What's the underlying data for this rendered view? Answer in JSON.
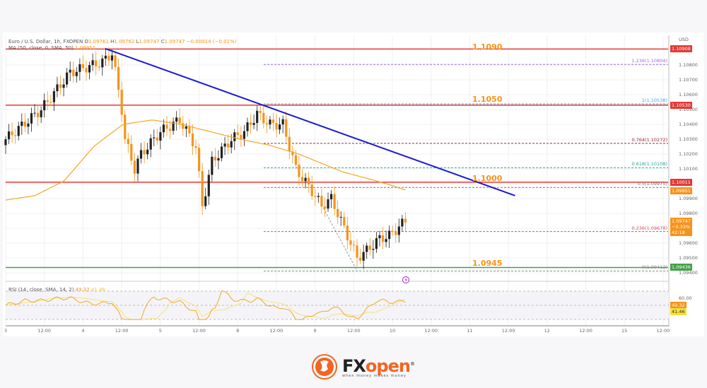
{
  "legend": {
    "symbol": "Euro / U.S. Dollar, 1h, FXOPEN",
    "open_label": "O",
    "open": "1.09761",
    "high_label": "H",
    "high": "1.09762",
    "low_label": "L",
    "low": "1.09747",
    "close_label": "C",
    "close": "1.09747",
    "change": "−0.00014 (−0.01%)",
    "ma": "MA (50, close, 0, SMA, 50)",
    "ma_value": "1.09951",
    "rsi": "RSI (14, close, SMA, 14, 2)",
    "rsi_value": "49.32",
    "rsi_ma_value": "41.46"
  },
  "currency": "USD",
  "levels": [
    {
      "label": "1.1090",
      "price": 1.10908,
      "tag": "1.10908",
      "color": "#e53935"
    },
    {
      "label": "1.1050",
      "price": 1.1053,
      "tag": "1.10530",
      "color": "#e53935"
    },
    {
      "label": "1.1000",
      "price": 1.10011,
      "tag": "1.10011",
      "color": "#e53935"
    },
    {
      "label": "1.0945",
      "price": 1.09436,
      "tag": "1.09436",
      "color": "#43a047"
    }
  ],
  "fib": [
    {
      "label": "1.236(1.10804)",
      "price": 1.10804,
      "color": "#9c6ad6"
    },
    {
      "label": "1(1.10538)",
      "price": 1.10538,
      "color": "#4aa3df"
    },
    {
      "label": "0.764(1.10272)",
      "price": 1.10272,
      "color": "#a0283c"
    },
    {
      "label": "0.618(1.10108)",
      "price": 1.10108,
      "color": "#26a69a"
    },
    {
      "label": "0.5(1.09975)",
      "price": 1.09975,
      "color": "#777777"
    },
    {
      "label": "0.236(1.09678)",
      "price": 1.09678,
      "color": "#e0505a"
    },
    {
      "label": "0(1.09412)",
      "price": 1.09412,
      "color": "#888888"
    }
  ],
  "price_tags": {
    "ma": "1.09951",
    "last": "1.09747",
    "last_change": "−0.33%",
    "countdown": "42:18",
    "rsi": "49.32",
    "rsi_ma": "41.46"
  },
  "price_ticks": [
    "1.10800",
    "1.10700",
    "1.10600",
    "1.10500",
    "1.10400",
    "1.10300",
    "1.10200",
    "1.10100",
    "1.09900",
    "1.09800",
    "1.09600",
    "1.09500",
    "1.09400"
  ],
  "rsi_ticks": [
    "60.00"
  ],
  "time_ticks": [
    "3",
    "12:00",
    "4",
    "12:00",
    "5",
    "12:00",
    "8",
    "12:00",
    "9",
    "12:00",
    "10",
    "12:00",
    "11",
    "12:00",
    "12",
    "12:00",
    "15",
    "12:00"
  ],
  "colors": {
    "up": "#222222",
    "down": "#f7931a",
    "ma": "#f5a623",
    "trend": "#1a1ad6",
    "rsi": "#f5a623",
    "rsi_ma": "#f4e27a",
    "brand": "#f26522"
  },
  "chart_data": {
    "type": "candlestick",
    "symbol": "EURUSD",
    "timeframe": "1h",
    "ylim": [
      1.0935,
      1.1098
    ],
    "close_path": [
      [
        0,
        1.103
      ],
      [
        11,
        1.105
      ],
      [
        20,
        1.1075
      ],
      [
        30,
        1.1082
      ],
      [
        33,
        1.1088
      ],
      [
        36,
        1.105
      ],
      [
        37,
        1.103
      ],
      [
        40,
        1.101
      ],
      [
        42,
        1.102
      ],
      [
        48,
        1.1035
      ],
      [
        54,
        1.1043
      ],
      [
        59,
        1.1025
      ],
      [
        61,
        1.0985
      ],
      [
        64,
        1.1015
      ],
      [
        70,
        1.103
      ],
      [
        74,
        1.1035
      ],
      [
        78,
        1.1047
      ],
      [
        82,
        1.104
      ],
      [
        86,
        1.104
      ],
      [
        88,
        1.1025
      ],
      [
        90,
        1.101
      ],
      [
        95,
        1.0995
      ],
      [
        98,
        1.0985
      ],
      [
        101,
        1.099
      ],
      [
        104,
        1.0975
      ],
      [
        107,
        1.096
      ],
      [
        109,
        1.095
      ],
      [
        112,
        1.0955
      ],
      [
        116,
        1.0963
      ],
      [
        119,
        1.0965
      ],
      [
        124,
        1.0975
      ]
    ],
    "ma50_path": [
      [
        0,
        1.0989
      ],
      [
        20,
        1.0992
      ],
      [
        40,
        1.1002
      ],
      [
        60,
        1.1025
      ],
      [
        80,
        1.104
      ],
      [
        100,
        1.1043
      ],
      [
        120,
        1.104
      ],
      [
        140,
        1.1035
      ],
      [
        160,
        1.103
      ],
      [
        180,
        1.1026
      ],
      [
        200,
        1.102
      ],
      [
        230,
        1.1008
      ],
      [
        260,
        1.1
      ],
      [
        275,
        1.0995
      ]
    ],
    "trendline": [
      [
        31,
        1.1091
      ],
      [
        158,
        1.0992
      ]
    ],
    "rsi_range": [
      20,
      80
    ]
  },
  "logo": {
    "brand_fx": "FX",
    "brand_open": "open",
    "tagline": "when money makes money",
    "reg": "®"
  }
}
